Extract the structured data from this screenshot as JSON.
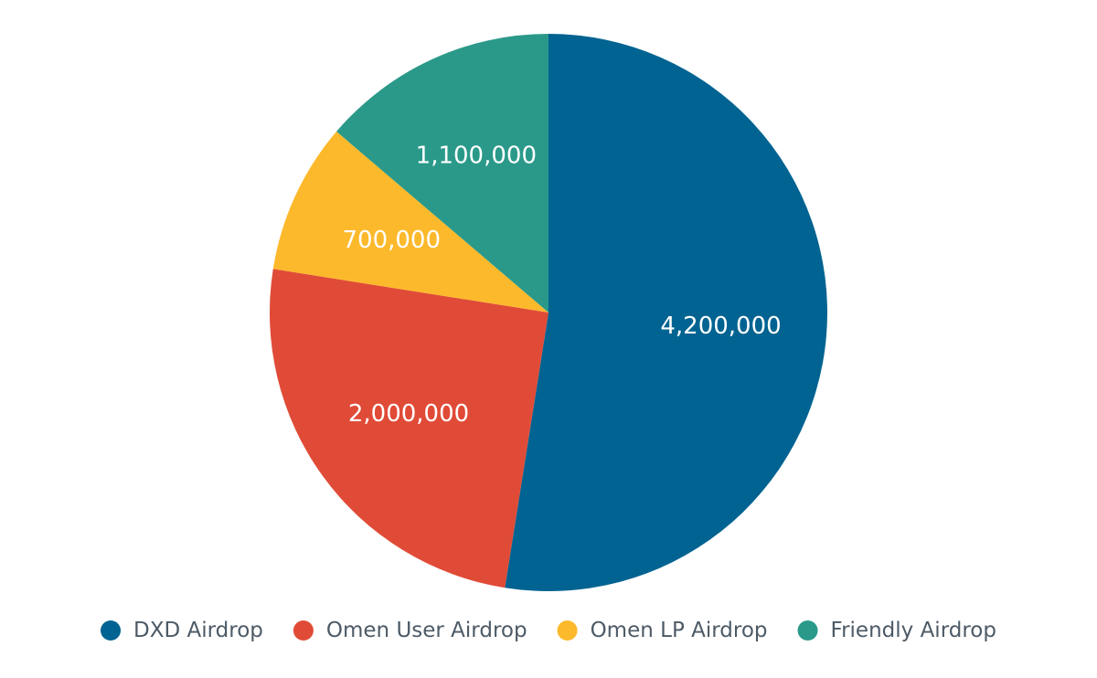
{
  "chart_data": {
    "type": "pie",
    "title": "",
    "legend_position": "bottom",
    "start_angle_deg": 0,
    "direction": "clockwise",
    "slices": [
      {
        "name": "DXD Airdrop",
        "value": 4200000,
        "label": "4,200,000",
        "color": "#006391"
      },
      {
        "name": "Omen User Airdrop",
        "value": 2000000,
        "label": "2,000,000",
        "color": "#e04b37"
      },
      {
        "name": "Omen LP Airdrop",
        "value": 700000,
        "label": "700,000",
        "color": "#fdb92c"
      },
      {
        "name": "Friendly Airdrop",
        "value": 1100000,
        "label": "1,100,000",
        "color": "#2a998a"
      }
    ]
  }
}
